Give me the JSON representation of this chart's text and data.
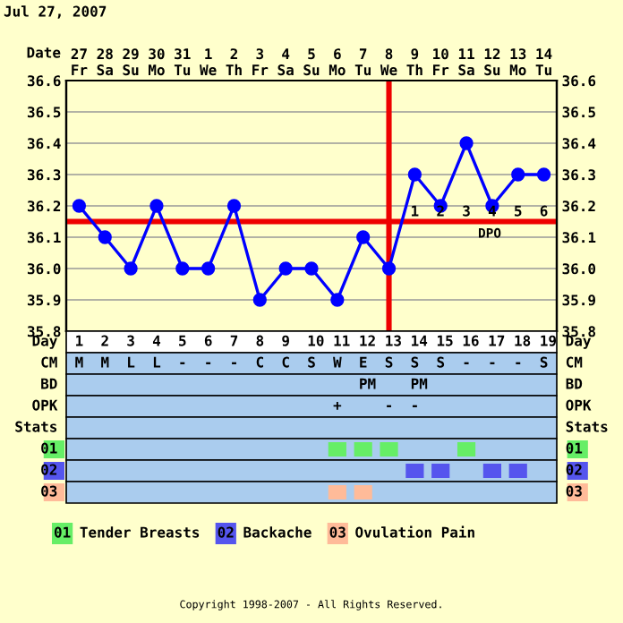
{
  "chart_data": {
    "type": "line",
    "title": "Jul 27, 2007",
    "categories": [
      "27\nFr",
      "28\nSa",
      "29\nSu",
      "30\nMo",
      "31\nTu",
      "1\nWe",
      "2\nTh",
      "3\nFr",
      "4\nSa",
      "5\nSu",
      "6\nMo",
      "7\nTu",
      "8\nWe",
      "9\nTh",
      "10\nFr",
      "11\nSa",
      "12\nSu",
      "13\nMo",
      "14\nTu"
    ],
    "series": [
      {
        "color": "#0000ff",
        "values": [
          36.2,
          36.1,
          36.0,
          36.2,
          36.0,
          36.0,
          36.2,
          35.9,
          36.0,
          36.0,
          35.9,
          36.1,
          36.0,
          36.3,
          36.2,
          36.4,
          36.2,
          36.3,
          36.3
        ]
      }
    ],
    "marker": "circle",
    "line_style": "solid",
    "grid": true,
    "ylim": [
      35.8,
      36.6
    ],
    "yticks": [
      35.8,
      35.9,
      {
        "value": 36,
        "label": "36.0"
      },
      36.1,
      36.2,
      36.3,
      36.4,
      36.5,
      36.6
    ],
    "y2lim": [
      35.8,
      36.6
    ],
    "y2ticks": [
      35.8,
      35.9,
      {
        "value": 36,
        "label": "36.0"
      },
      36.1,
      36.2,
      36.3,
      36.4,
      36.5,
      36.6
    ],
    "ref_lines": [
      {
        "axis": "y",
        "value": 36.15,
        "color": "#ee0000"
      },
      {
        "axis": "x",
        "value": "8\nWe",
        "color": "#ee0000"
      }
    ],
    "annotations": [
      "Date",
      {
        "text": "1",
        "x": "9\nTh",
        "y": 36.18
      },
      {
        "text": "2",
        "x": "10\nFr",
        "y": 36.18
      },
      {
        "text": "3",
        "x": "11\nSa",
        "y": 36.18
      },
      {
        "text": "4",
        "x": "12\nSu",
        "y": 36.18
      },
      {
        "text": "5",
        "x": "13\nMo",
        "y": 36.18
      },
      {
        "text": "6",
        "x": "14\nTu",
        "y": 36.18
      },
      "DPO",
      "Day\t1\t2\t3\t4\t5\t6\t7\t8\t9\t10\t11\t12\t13\t14\t15\t16\t17\t18\t19\tDay",
      "CM\tM\tM\tL\tL\t-\t-\t-\tC\tC\tS\tW\tE\tS\tS\tS\t-\t-\t-\tS\tCM",
      "BD\t\t\t\t\t\t\t\t\t\t\t\tPM\t\tPM\t\t\t\t\t\tBD",
      "OPK\t\t\t\t\t\t\t\t\t\t\t+\t\t-\t-\t\t\t\t\t\tOPK",
      "Stats\t\t\t\t\t\t\t\t\t\t\t\t\t\t\t\t\t\t\t\tStats",
      "01\t\t\t\t\t\t\t\t\t\t\t \t \t \t\t\t \t\t\t\t01",
      "02\t\t\t\t\t\t\t\t\t\t\t\t\t\t \t \t\t \t \t\t02",
      "03\t\t\t\t\t\t\t\t\t\t\t \t \t\t\t\t\t\t\t\t03",
      "01 Tender Breasts",
      "02 Backache",
      "03 Ovulation Pain",
      "Copyright 1998-2007 - All Rights Reserved."
    ]
  }
}
